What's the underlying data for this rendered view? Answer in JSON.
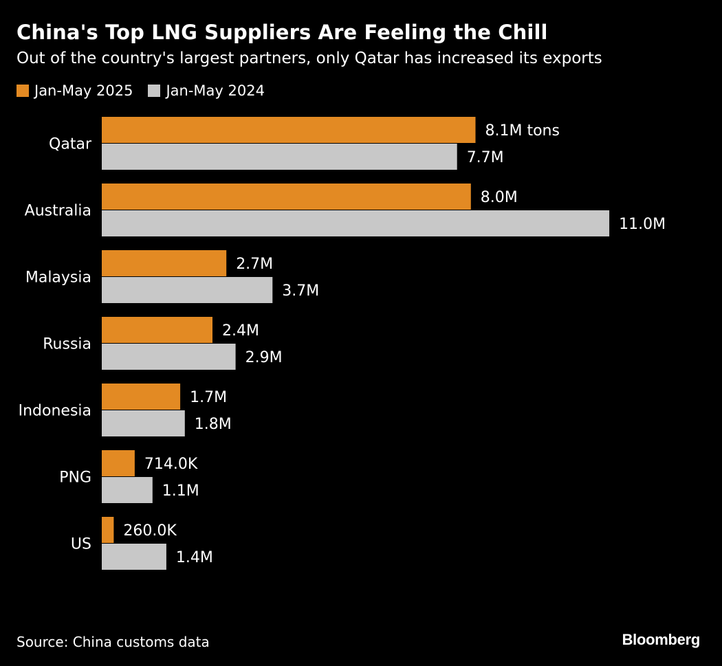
{
  "header": {
    "title": "China's Top LNG Suppliers Are Feeling the Chill",
    "subtitle": "Out of the country's largest partners, only Qatar has increased its exports"
  },
  "footer": {
    "source": "Source: China customs data",
    "brand": "Bloomberg"
  },
  "colors": {
    "background": "#000000",
    "series_2025": "#E38A23",
    "series_2024": "#C8C8C8",
    "text": "#FFFFFF"
  },
  "chart_data": {
    "type": "bar",
    "orientation": "horizontal",
    "title": "China's Top LNG Suppliers Are Feeling the Chill",
    "subtitle": "Out of the country's largest partners, only Qatar has increased its exports",
    "xlabel": "",
    "ylabel": "",
    "xlim": [
      0,
      11.0
    ],
    "grid": false,
    "legend_position": "top-left",
    "unit": "million tons",
    "categories": [
      "Qatar",
      "Australia",
      "Malaysia",
      "Russia",
      "Indonesia",
      "PNG",
      "US"
    ],
    "series": [
      {
        "name": "Jan-May 2025",
        "color": "#E38A23",
        "values": [
          8.1,
          8.0,
          2.7,
          2.4,
          1.7,
          0.714,
          0.26
        ],
        "labels": [
          "8.1M tons",
          "8.0M",
          "2.7M",
          "2.4M",
          "1.7M",
          "714.0K",
          "260.0K"
        ]
      },
      {
        "name": "Jan-May 2024",
        "color": "#C8C8C8",
        "values": [
          7.7,
          11.0,
          3.7,
          2.9,
          1.8,
          1.1,
          1.4
        ],
        "labels": [
          "7.7M",
          "11.0M",
          "3.7M",
          "2.9M",
          "1.8M",
          "1.1M",
          "1.4M"
        ]
      }
    ],
    "source": "Source: China customs data"
  }
}
